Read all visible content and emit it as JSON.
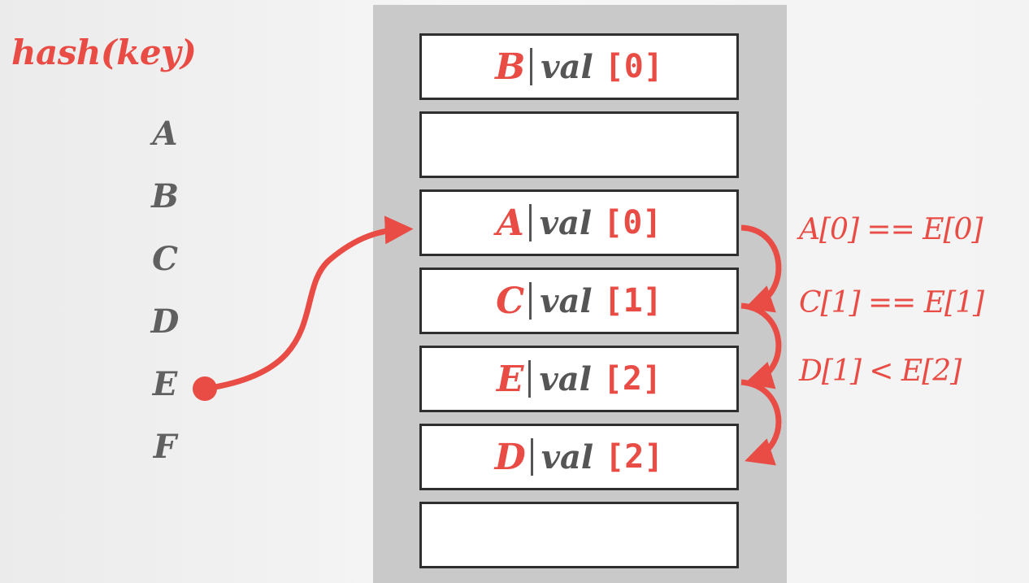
{
  "title": "hash(key)",
  "keys": [
    "A",
    "B",
    "C",
    "D",
    "E",
    "F"
  ],
  "slots": [
    {
      "key": "B",
      "val": "val",
      "index": "[0]"
    },
    {
      "key": "",
      "val": "",
      "index": ""
    },
    {
      "key": "A",
      "val": "val",
      "index": "[0]"
    },
    {
      "key": "C",
      "val": "val",
      "index": "[1]"
    },
    {
      "key": "E",
      "val": "val",
      "index": "[2]"
    },
    {
      "key": "D",
      "val": "val",
      "index": "[2]"
    },
    {
      "key": "",
      "val": "",
      "index": ""
    }
  ],
  "comparisons": [
    "A[0] == E[0]",
    "C[1] == E[1]",
    "D[1] < E[2]"
  ],
  "colors": {
    "accent": "#e84c45",
    "text": "#606060",
    "table_bg": "#c9c9c9"
  }
}
